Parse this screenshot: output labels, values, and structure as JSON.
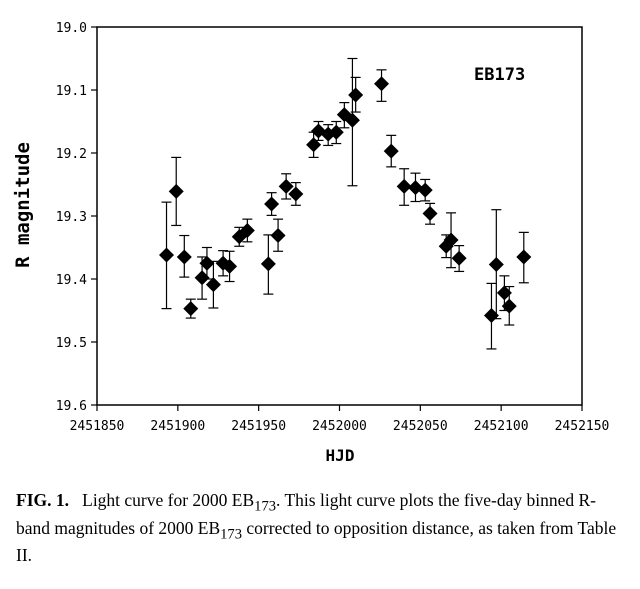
{
  "chart_data": {
    "type": "scatter",
    "title": "",
    "xlabel": "HJD",
    "ylabel": "R magnitude",
    "annotation": "EB173",
    "xlim": [
      2451850,
      2452150
    ],
    "ylim": [
      19.0,
      19.6
    ],
    "y_inverted": true,
    "grid": false,
    "xticks": [
      2451850,
      2451900,
      2451950,
      2452000,
      2452050,
      2452100,
      2452150
    ],
    "yticks": [
      "19.0",
      "19.1",
      "19.2",
      "19.3",
      "19.4",
      "19.5",
      "19.6"
    ],
    "points": [
      {
        "x": 2451893,
        "y": 19.362,
        "lo": 19.278,
        "hi": 19.447
      },
      {
        "x": 2451899,
        "y": 19.261,
        "lo": 19.207,
        "hi": 19.315
      },
      {
        "x": 2451904,
        "y": 19.365,
        "lo": 19.331,
        "hi": 19.397
      },
      {
        "x": 2451908,
        "y": 19.447,
        "lo": 19.432,
        "hi": 19.462
      },
      {
        "x": 2451915,
        "y": 19.398,
        "lo": 19.365,
        "hi": 19.432
      },
      {
        "x": 2451918,
        "y": 19.375,
        "lo": 19.35,
        "hi": 19.4
      },
      {
        "x": 2451922,
        "y": 19.409,
        "lo": 19.372,
        "hi": 19.446
      },
      {
        "x": 2451928,
        "y": 19.375,
        "lo": 19.355,
        "hi": 19.395
      },
      {
        "x": 2451932,
        "y": 19.38,
        "lo": 19.356,
        "hi": 19.404
      },
      {
        "x": 2451938,
        "y": 19.333,
        "lo": 19.318,
        "hi": 19.348
      },
      {
        "x": 2451943,
        "y": 19.323,
        "lo": 19.305,
        "hi": 19.341
      },
      {
        "x": 2451956,
        "y": 19.376,
        "lo": 19.33,
        "hi": 19.424
      },
      {
        "x": 2451958,
        "y": 19.281,
        "lo": 19.263,
        "hi": 19.299
      },
      {
        "x": 2451962,
        "y": 19.331,
        "lo": 19.305,
        "hi": 19.356
      },
      {
        "x": 2451967,
        "y": 19.253,
        "lo": 19.233,
        "hi": 19.273
      },
      {
        "x": 2451973,
        "y": 19.265,
        "lo": 19.247,
        "hi": 19.283
      },
      {
        "x": 2451984,
        "y": 19.187,
        "lo": 19.167,
        "hi": 19.207
      },
      {
        "x": 2451987,
        "y": 19.165,
        "lo": 19.15,
        "hi": 19.18
      },
      {
        "x": 2451993,
        "y": 19.17,
        "lo": 19.155,
        "hi": 19.188
      },
      {
        "x": 2451998,
        "y": 19.167,
        "lo": 19.15,
        "hi": 19.185
      },
      {
        "x": 2452003,
        "y": 19.139,
        "lo": 19.12,
        "hi": 19.16
      },
      {
        "x": 2452008,
        "y": 19.148,
        "lo": 19.05,
        "hi": 19.252
      },
      {
        "x": 2452010,
        "y": 19.108,
        "lo": 19.08,
        "hi": 19.135
      },
      {
        "x": 2452026,
        "y": 19.09,
        "lo": 19.068,
        "hi": 19.118
      },
      {
        "x": 2452032,
        "y": 19.197,
        "lo": 19.172,
        "hi": 19.222
      },
      {
        "x": 2452040,
        "y": 19.253,
        "lo": 19.225,
        "hi": 19.283
      },
      {
        "x": 2452047,
        "y": 19.255,
        "lo": 19.232,
        "hi": 19.277
      },
      {
        "x": 2452053,
        "y": 19.259,
        "lo": 19.242,
        "hi": 19.276
      },
      {
        "x": 2452056,
        "y": 19.296,
        "lo": 19.28,
        "hi": 19.313
      },
      {
        "x": 2452066,
        "y": 19.348,
        "lo": 19.33,
        "hi": 19.366
      },
      {
        "x": 2452069,
        "y": 19.338,
        "lo": 19.295,
        "hi": 19.382
      },
      {
        "x": 2452074,
        "y": 19.367,
        "lo": 19.347,
        "hi": 19.388
      },
      {
        "x": 2452094,
        "y": 19.458,
        "lo": 19.407,
        "hi": 19.511
      },
      {
        "x": 2452097,
        "y": 19.377,
        "lo": 19.29,
        "hi": 19.463
      },
      {
        "x": 2452102,
        "y": 19.422,
        "lo": 19.395,
        "hi": 19.45
      },
      {
        "x": 2452105,
        "y": 19.443,
        "lo": 19.412,
        "hi": 19.473
      },
      {
        "x": 2452114,
        "y": 19.365,
        "lo": 19.326,
        "hi": 19.406
      }
    ]
  },
  "caption": {
    "label": "FIG. 1.",
    "text_1": "Light curve for 2000 EB",
    "sub_1": "173",
    "text_2": ". This light curve plots the five-day binned R-band magnitudes of 2000 EB",
    "sub_2": "173",
    "text_3": " corrected to opposition distance, as taken from Table II."
  }
}
